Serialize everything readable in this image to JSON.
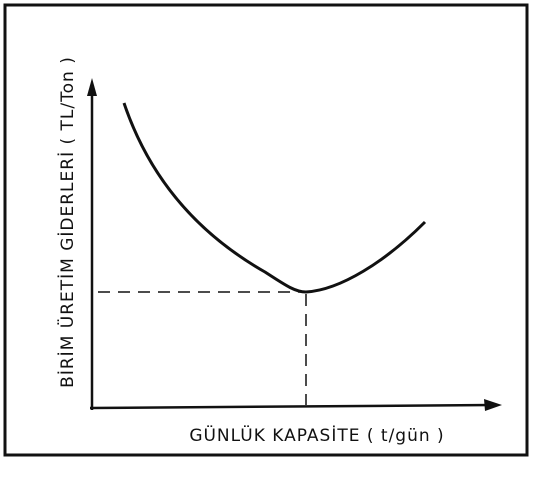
{
  "diagram": {
    "y_axis_label": "BİRİM ÜRETİM GİDERLERİ ( TL/Ton )",
    "x_axis_label": "GÜNLÜK KAPASİTE ( t/gün )"
  }
}
